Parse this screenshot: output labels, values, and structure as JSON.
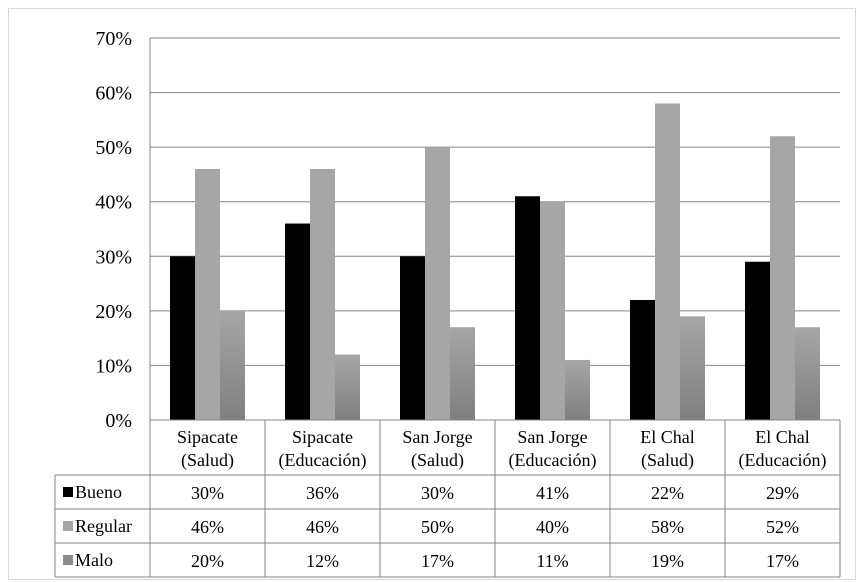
{
  "chart_data": {
    "type": "bar",
    "title": "",
    "xlabel": "",
    "ylabel": "",
    "ylim": [
      0,
      70
    ],
    "y_ticks": [
      0,
      10,
      20,
      30,
      40,
      50,
      60,
      70
    ],
    "y_tick_suffix": "%",
    "grid": true,
    "legend": "data-table",
    "categories": [
      {
        "line1": "Sipacate",
        "line2": "(Salud)"
      },
      {
        "line1": "Sipacate",
        "line2": "(Educación)"
      },
      {
        "line1": "San Jorge",
        "line2": "(Salud)"
      },
      {
        "line1": "San Jorge",
        "line2": "(Educación)"
      },
      {
        "line1": "El Chal",
        "line2": "(Salud)"
      },
      {
        "line1": "El Chal",
        "line2": "(Educación)"
      }
    ],
    "series": [
      {
        "name": "Bueno",
        "color": "#000000",
        "values": [
          30,
          36,
          30,
          41,
          22,
          29
        ],
        "labels": [
          "30%",
          "36%",
          "30%",
          "41%",
          "22%",
          "29%"
        ]
      },
      {
        "name": "Regular",
        "color": "#a6a6a6",
        "values": [
          46,
          46,
          50,
          40,
          58,
          52
        ],
        "labels": [
          "46%",
          "46%",
          "50%",
          "40%",
          "58%",
          "52%"
        ]
      },
      {
        "name": "Malo",
        "color": "#8c8c8c",
        "values": [
          20,
          12,
          17,
          11,
          19,
          17
        ],
        "labels": [
          "20%",
          "12%",
          "17%",
          "11%",
          "19%",
          "17%"
        ]
      }
    ]
  }
}
